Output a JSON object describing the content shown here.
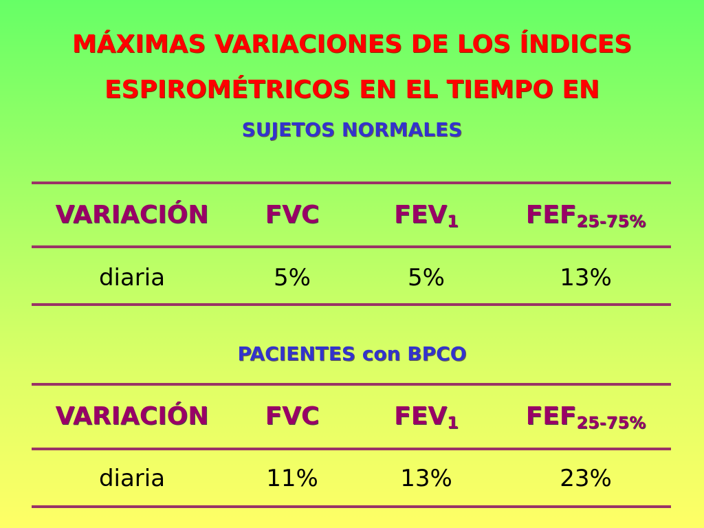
{
  "title": {
    "line1": "MÁXIMAS VARIACIONES DE LOS ÍNDICES",
    "line2": "ESPIROMÉTRICOS EN EL TIEMPO EN"
  },
  "tables": [
    {
      "heading": "SUJETOS NORMALES",
      "columns": [
        {
          "label": "VARIACIÓN",
          "sub": ""
        },
        {
          "label": "FVC",
          "sub": ""
        },
        {
          "label": "FEV",
          "sub": "1"
        },
        {
          "label": "FEF",
          "sub": "25-75%"
        }
      ],
      "row": [
        "diaria",
        "5%",
        "5%",
        "13%"
      ]
    },
    {
      "heading": "PACIENTES con BPCO",
      "columns": [
        {
          "label": "VARIACIÓN",
          "sub": ""
        },
        {
          "label": "FVC",
          "sub": ""
        },
        {
          "label": "FEV",
          "sub": "1"
        },
        {
          "label": "FEF",
          "sub": "25-75%"
        }
      ],
      "row": [
        "diaria",
        "11%",
        "13%",
        "23%"
      ]
    }
  ],
  "colors": {
    "title": "#ff0000",
    "subheading": "#3333cc",
    "header": "#990066",
    "rule": "#993366"
  }
}
